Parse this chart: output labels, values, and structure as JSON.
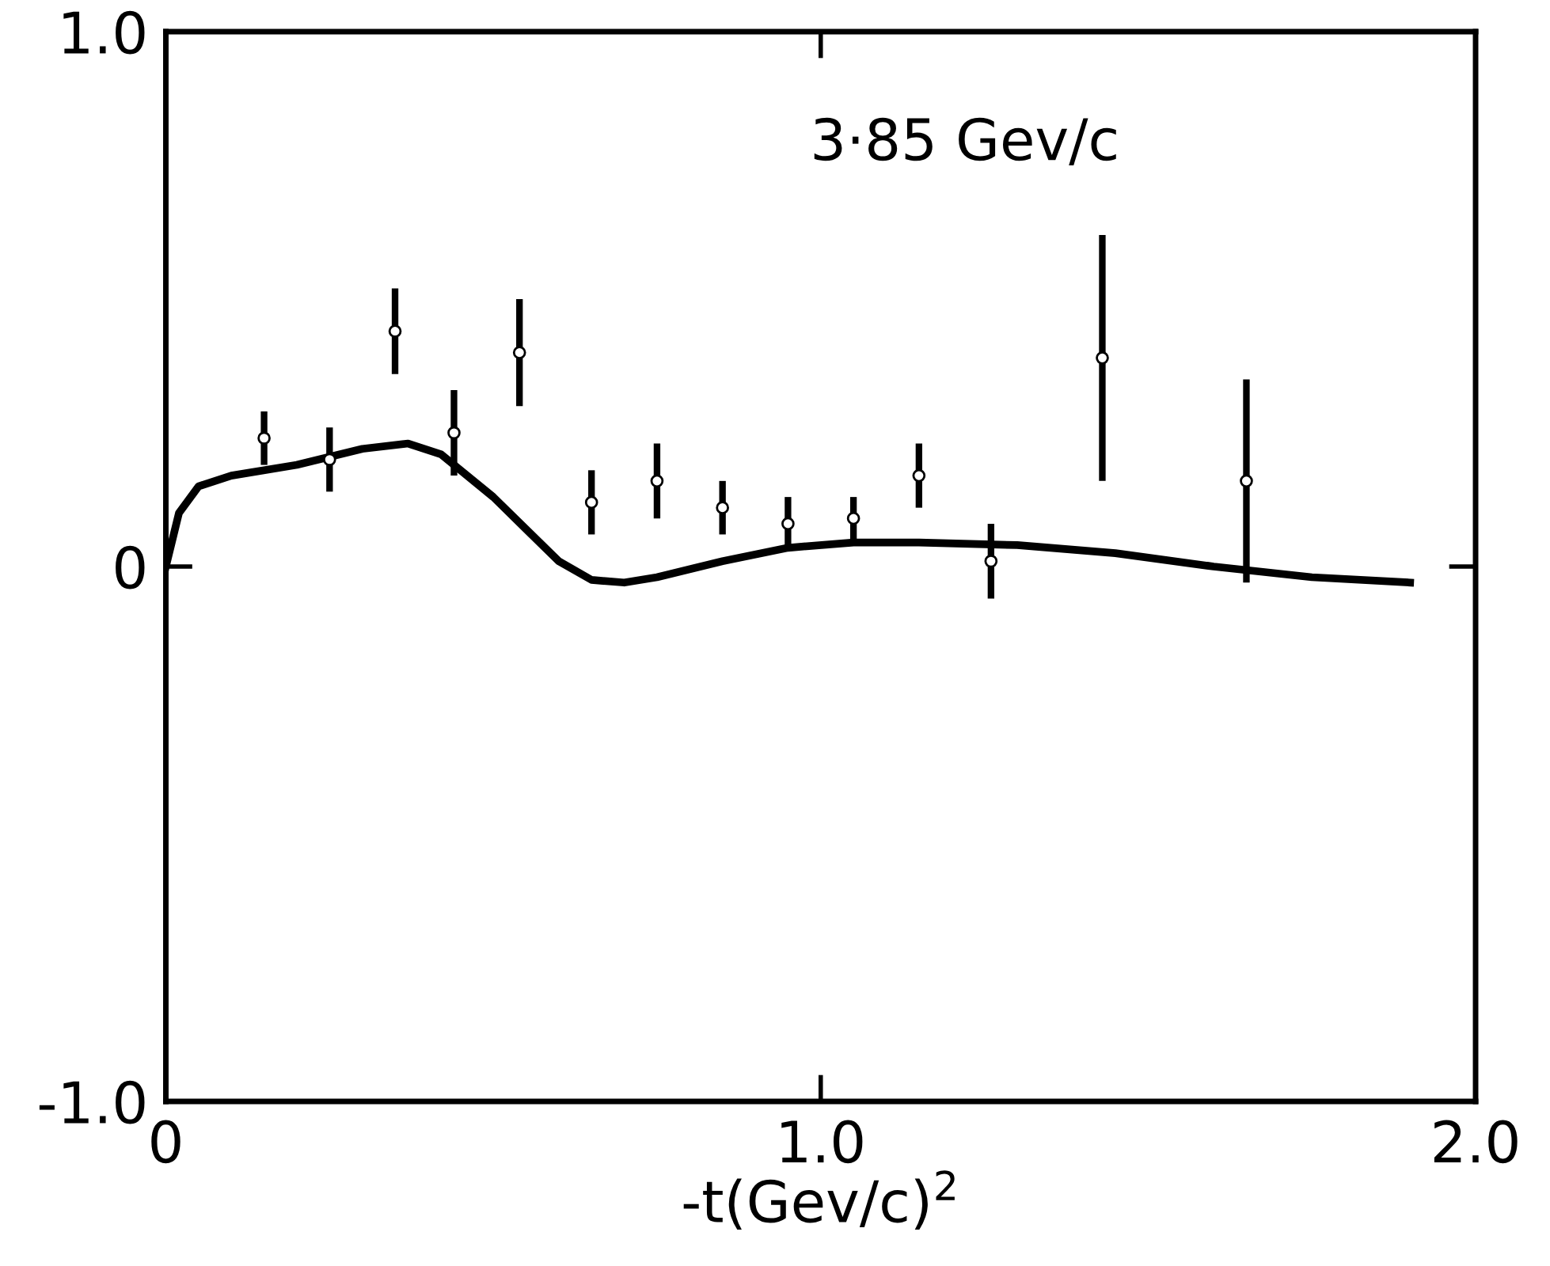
{
  "chart_data": {
    "type": "scatter",
    "xlabel": "-t(Gev/c)$^{2}$",
    "annotations": [
      "3·85 Gev/c"
    ],
    "xlim": [
      0,
      2.0
    ],
    "ylim": [
      -1.0,
      1.0
    ],
    "xticks": [
      0,
      {
        "value": 1.0,
        "label": "1.0"
      },
      {
        "value": 2.0,
        "label": "2.0"
      }
    ],
    "yticks": [
      {
        "value": -1.0,
        "label": "-1.0"
      },
      0,
      {
        "value": 1.0,
        "label": "1.0"
      }
    ],
    "grid": false,
    "legend": false,
    "series": [
      {
        "color": "#000000",
        "marker": "circle",
        "x": [
          0.15,
          0.25,
          0.35,
          0.44,
          0.54,
          0.65,
          0.75,
          0.85,
          0.95,
          1.05,
          1.15,
          1.26,
          1.43,
          1.65
        ],
        "values": [
          0.24,
          0.2,
          0.44,
          0.25,
          0.4,
          0.12,
          0.16,
          0.11,
          0.08,
          0.09,
          0.17,
          0.01,
          0.39,
          0.16
        ],
        "errors": [
          0.05,
          0.06,
          0.08,
          0.08,
          0.1,
          0.06,
          0.07,
          0.05,
          0.05,
          0.04,
          0.06,
          0.07,
          0.23,
          0.19
        ]
      },
      {
        "type": "line",
        "color": "#000000",
        "marker": "none",
        "line_style": "solid",
        "x": [
          0,
          0.02,
          0.05,
          0.1,
          0.2,
          0.3,
          0.37,
          0.42,
          0.5,
          0.55,
          0.6,
          0.65,
          0.7,
          0.75,
          0.85,
          0.95,
          1.05,
          1.15,
          1.3,
          1.45,
          1.6,
          1.75,
          1.9
        ],
        "values": [
          0,
          0.1,
          0.15,
          0.17,
          0.19,
          0.22,
          0.23,
          0.21,
          0.13,
          0.07,
          0.01,
          -0.025,
          -0.03,
          -0.02,
          0.01,
          0.035,
          0.045,
          0.045,
          0.04,
          0.025,
          0.0,
          -0.02,
          -0.03
        ]
      }
    ]
  }
}
